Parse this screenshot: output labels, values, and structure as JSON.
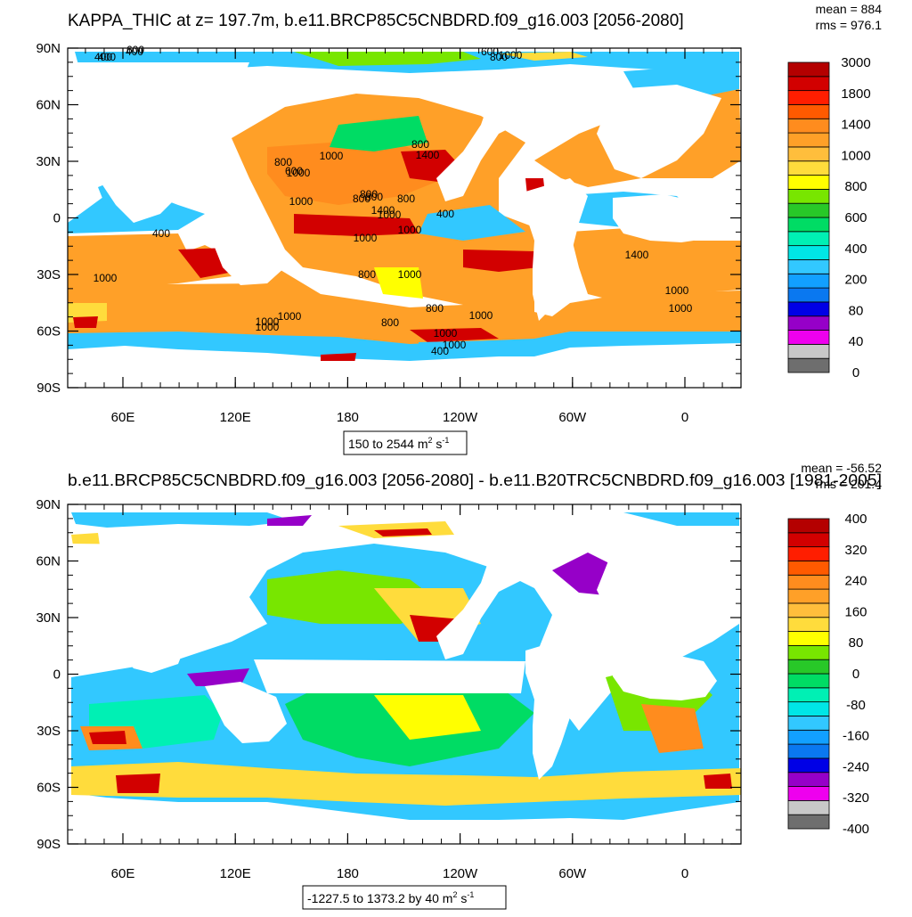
{
  "panels": [
    {
      "title": "KAPPA_THIC at z= 197.7m, b.e11.BRCP85C5CNBDRD.f09_g16.003 [2056-2080]",
      "stats": [
        "mean = 884",
        "rms = 976.1"
      ],
      "range_label": {
        "main": "150 to 2544 m",
        "sup1": "2",
        "mid": " s",
        "sup2": "-1"
      },
      "lat_labels": [
        "90N",
        "60N",
        "30N",
        "0",
        "30S",
        "60S",
        "90S"
      ],
      "lon_labels": [
        "60E",
        "120E",
        "180",
        "120W",
        "60W",
        "0"
      ],
      "colorbar": {
        "colors": [
          "#6e6e6e",
          "#c8c8c8",
          "#ee00ee",
          "#9600c8",
          "#0000e6",
          "#0a78f0",
          "#12a0ff",
          "#32c8ff",
          "#00e6e6",
          "#00f0b4",
          "#00dc64",
          "#28c828",
          "#78e600",
          "#ffff00",
          "#ffdc3c",
          "#ffbe3c",
          "#ffa028",
          "#ff8c1e",
          "#ff5a00",
          "#ff1e00",
          "#d20000",
          "#b40000"
        ],
        "labels": [
          "0",
          "40",
          "80",
          "200",
          "400",
          "600",
          "800",
          "1000",
          "1400",
          "1800",
          "3000"
        ]
      },
      "contour_labels": [
        "400",
        "600",
        "800",
        "1000",
        "800",
        "800",
        "1000",
        "600",
        "800",
        "1000",
        "1400",
        "1000",
        "800",
        "1000",
        "400",
        "800",
        "1400",
        "1000",
        "400",
        "1000",
        "1000",
        "1000",
        "1400",
        "1000",
        "1000",
        "800",
        "800",
        "1000",
        "1000",
        "1000",
        "1000",
        "1000",
        "400",
        "800",
        "1000",
        "400",
        "400",
        "600",
        "800"
      ]
    },
    {
      "title": "b.e11.BRCP85C5CNBDRD.f09_g16.003 [2056-2080] - b.e11.B20TRC5CNBDRD.f09_g16.003 [1981-2005]",
      "stats": [
        "mean = -56.52",
        "rms = 201.4"
      ],
      "range_label": {
        "main": "-1227.5 to 1373.2 by 40 m",
        "sup1": "2",
        "mid": " s",
        "sup2": "-1"
      },
      "lat_labels": [
        "90N",
        "60N",
        "30N",
        "0",
        "30S",
        "60S",
        "90S"
      ],
      "lon_labels": [
        "60E",
        "120E",
        "180",
        "120W",
        "60W",
        "0"
      ],
      "colorbar": {
        "colors": [
          "#6e6e6e",
          "#c8c8c8",
          "#ee00ee",
          "#9600c8",
          "#0000e6",
          "#0a78f0",
          "#12a0ff",
          "#32c8ff",
          "#00e6e6",
          "#00f0b4",
          "#00dc64",
          "#28c828",
          "#78e600",
          "#ffff00",
          "#ffdc3c",
          "#ffbe3c",
          "#ffa028",
          "#ff8c1e",
          "#ff5a00",
          "#ff1e00",
          "#d20000",
          "#b40000"
        ],
        "labels": [
          "-400",
          "-320",
          "-240",
          "-160",
          "-80",
          "0",
          "80",
          "160",
          "240",
          "320",
          "400"
        ]
      }
    }
  ]
}
